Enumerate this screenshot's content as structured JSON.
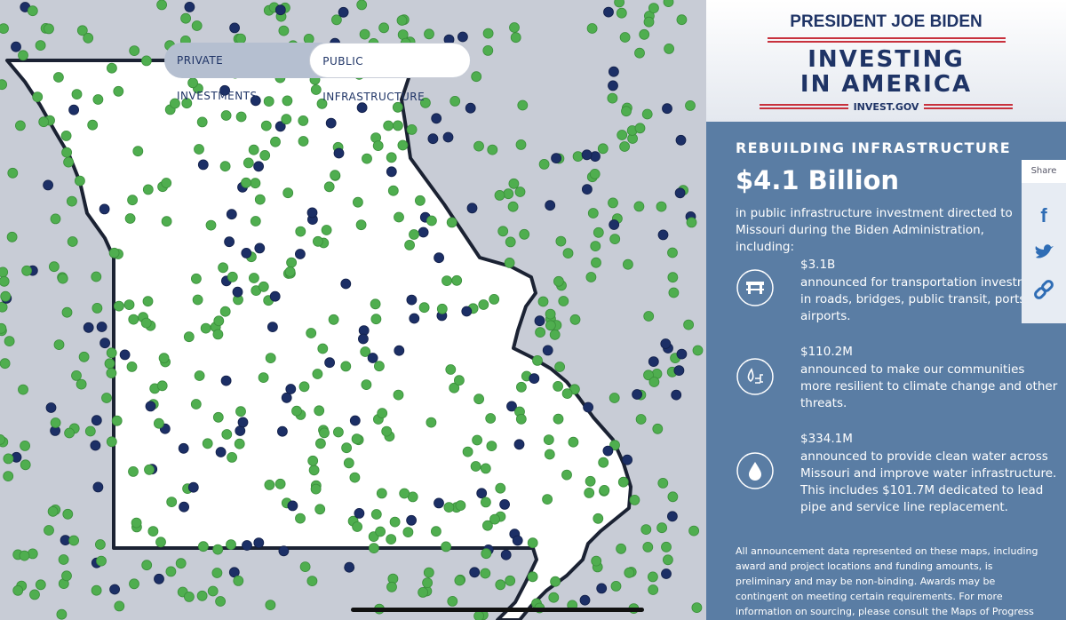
{
  "map": {
    "toggle": [
      "PRIVATE INVESTMENTS",
      "PUBLIC INFRASTRUCTURE"
    ]
  },
  "header": {
    "kicker": "PRESIDENT JOE BIDEN",
    "title": "INVESTING IN AMERICA",
    "site": "INVEST.GOV"
  },
  "panel": {
    "heading": "REBUILDING INFRASTRUCTURE",
    "total": "$4.1 Billion",
    "intro": "in public infrastructure investment directed to Missouri during the Biden Administration, including:",
    "items": [
      {
        "amount": "$3.1B",
        "text": "announced for transportation investments in roads, bridges, public transit, ports, and airports."
      },
      {
        "amount": "$110.2M",
        "text": "announced to make our communities more resilient to climate change and other threats."
      },
      {
        "amount": "$334.1M",
        "text": "announced to provide clean water across Missouri and improve water infrastructure. This includes $101.7M dedicated to lead pipe and service line replacement."
      }
    ],
    "footnote": "All announcement data represented on these maps, including award and project locations and funding amounts, is preliminary and may be non-binding. Awards may be contingent on meeting certain requirements. For more information on sourcing, please consult the Maps of Progress on build.gov."
  },
  "share": {
    "label": "Share"
  }
}
